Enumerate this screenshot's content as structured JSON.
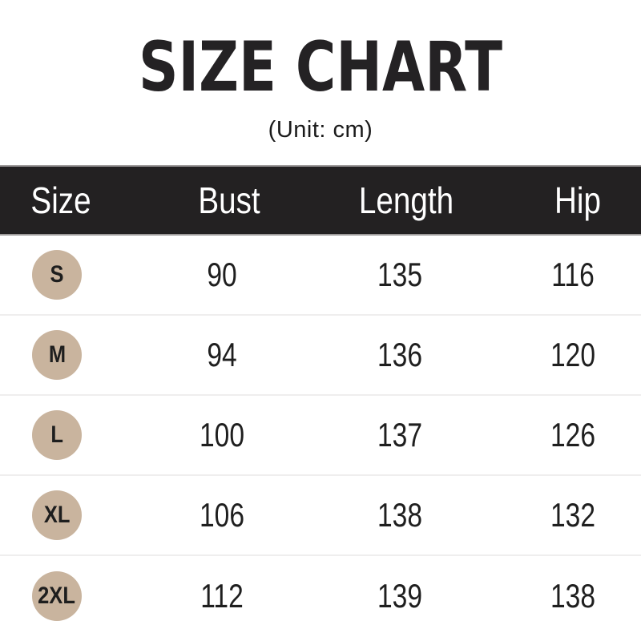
{
  "title": "SIZE CHART",
  "subtitle": "(Unit: cm)",
  "unit": "cm",
  "colors": {
    "background": "#ffffff",
    "title_text": "#242224",
    "header_bg": "#232122",
    "header_text": "#ffffff",
    "header_rule": "#9e9b9b",
    "row_separator": "#efeeee",
    "size_badge_bg": "#c9b49e",
    "value_text": "#1f1f1f"
  },
  "table": {
    "columns": [
      "Size",
      "Bust",
      "Length",
      "Hip"
    ],
    "rows": [
      {
        "size": "S",
        "bust": "90",
        "length": "135",
        "hip": "116"
      },
      {
        "size": "M",
        "bust": "94",
        "length": "136",
        "hip": "120"
      },
      {
        "size": "L",
        "bust": "100",
        "length": "137",
        "hip": "126"
      },
      {
        "size": "XL",
        "bust": "106",
        "length": "138",
        "hip": "132"
      },
      {
        "size": "2XL",
        "bust": "112",
        "length": "139",
        "hip": "138"
      }
    ]
  },
  "chart_data": {
    "type": "table",
    "title": "SIZE CHART",
    "subtitle": "(Unit: cm)",
    "columns": [
      "Size",
      "Bust",
      "Length",
      "Hip"
    ],
    "rows": [
      [
        "S",
        90,
        135,
        116
      ],
      [
        "M",
        94,
        136,
        120
      ],
      [
        "L",
        100,
        137,
        126
      ],
      [
        "XL",
        106,
        138,
        132
      ],
      [
        "2XL",
        112,
        139,
        138
      ]
    ],
    "unit": "cm",
    "layout": {
      "header_style": "dark-bar",
      "size_badges": "tan-circles"
    }
  }
}
